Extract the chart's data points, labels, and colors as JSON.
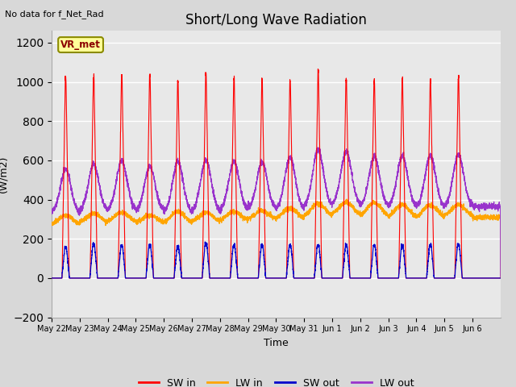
{
  "title": "Short/Long Wave Radiation",
  "xlabel": "Time",
  "ylabel": "(W/m2)",
  "top_left_text": "No data for f_Net_Rad",
  "legend_label": "VR_met",
  "ylim": [
    -200,
    1260
  ],
  "yticks": [
    -200,
    0,
    200,
    400,
    600,
    800,
    1000,
    1200
  ],
  "date_labels": [
    "May 22",
    "May 23",
    "May 24",
    "May 25",
    "May 26",
    "May 27",
    "May 28",
    "May 29",
    "May 30",
    "May 31",
    "Jun 1",
    "Jun 2",
    "Jun 3",
    "Jun 4",
    "Jun 5",
    "Jun 6"
  ],
  "n_days": 16,
  "SW_in_peak": [
    1020,
    1030,
    1035,
    1030,
    1000,
    1040,
    1020,
    1010,
    1010,
    1050,
    1010,
    1000,
    1010,
    1010,
    1020,
    0
  ],
  "LW_in_night": [
    270,
    280,
    285,
    280,
    275,
    285,
    290,
    295,
    300,
    310,
    320,
    310,
    305,
    305,
    310,
    310
  ],
  "LW_in_day": [
    320,
    330,
    335,
    320,
    340,
    335,
    340,
    345,
    355,
    380,
    385,
    385,
    375,
    370,
    375,
    310
  ],
  "SW_out_peak": [
    155,
    170,
    165,
    165,
    160,
    175,
    165,
    165,
    165,
    165,
    165,
    165,
    165,
    165,
    170,
    0
  ],
  "LW_out_night": [
    330,
    340,
    345,
    340,
    330,
    340,
    345,
    350,
    350,
    365,
    375,
    365,
    360,
    360,
    365,
    365
  ],
  "LW_out_day_peak": [
    555,
    580,
    600,
    570,
    595,
    600,
    595,
    590,
    615,
    655,
    645,
    620,
    625,
    625,
    630,
    365
  ],
  "colors": {
    "SW_in": "#ff0000",
    "LW_in": "#ffa500",
    "SW_out": "#0000cc",
    "LW_out": "#9933cc"
  },
  "bg_color": "#d8d8d8",
  "plot_bg": "#e8e8e8",
  "grid_color": "#ffffff",
  "legend_box_color": "#ffff99",
  "legend_box_edge": "#8B8B00"
}
